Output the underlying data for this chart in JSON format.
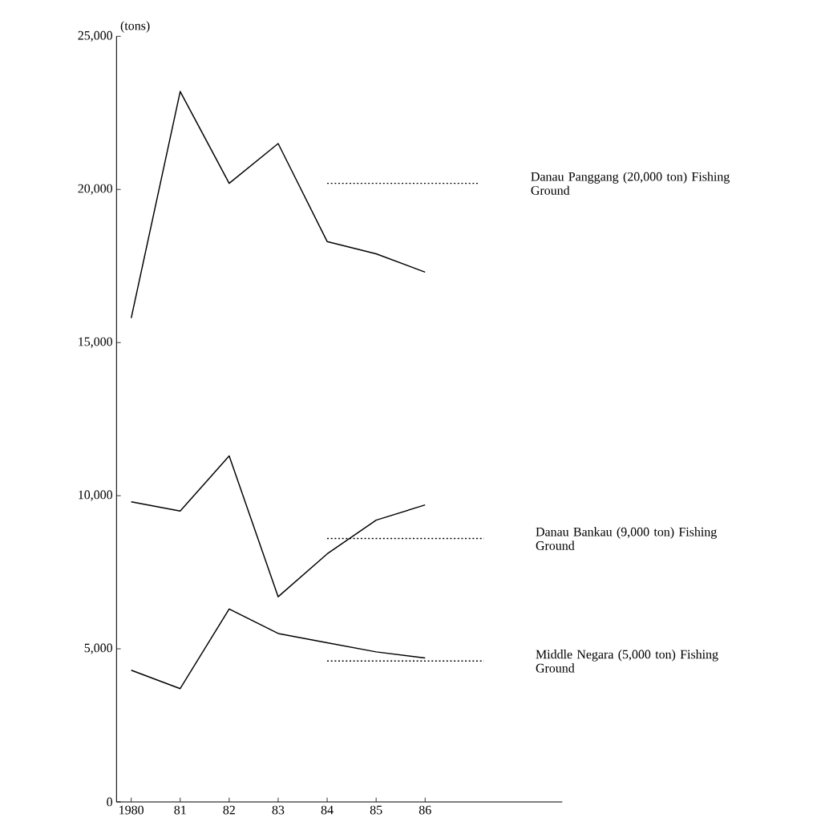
{
  "chart_data": {
    "type": "line",
    "ylabel": "(tons)",
    "xlim": [
      1979.7,
      1988.8
    ],
    "ylim": [
      0,
      25000
    ],
    "xticks": [
      1980,
      {
        "value": 1981,
        "label": "81"
      },
      {
        "value": 1982,
        "label": "82"
      },
      {
        "value": 1983,
        "label": "83"
      },
      {
        "value": 1984,
        "label": "84"
      },
      {
        "value": 1985,
        "label": "85"
      },
      {
        "value": 1986,
        "label": "86"
      }
    ],
    "yticks": [
      0,
      {
        "value": 5000,
        "label": "5,000"
      },
      {
        "value": 10000,
        "label": "10,000"
      },
      {
        "value": 15000,
        "label": "15,000"
      },
      {
        "value": 20000,
        "label": "20,000"
      },
      {
        "value": 25000,
        "label": "25,000"
      }
    ],
    "x": [
      1980,
      1981,
      1982,
      1983,
      1984,
      1985,
      1986
    ],
    "marker": "none",
    "grid": false,
    "legend": false,
    "series": [
      {
        "color": "#000000",
        "line_style": "solid",
        "values": [
          15800,
          23200,
          20200,
          21500,
          18300,
          17900,
          17300
        ]
      },
      {
        "name": "Danau Panggang (20,000 ton) Fishing Ground",
        "color": "#000000",
        "line_style": "dotted",
        "x": [
          1984,
          1987.1
        ],
        "values": [
          20200,
          20200
        ]
      },
      {
        "color": "#000000",
        "line_style": "solid",
        "values": [
          9800,
          9500,
          11300,
          6700,
          8100,
          9200,
          9700
        ]
      },
      {
        "name": "Danau Bankau (9,000 ton) Fishing Ground",
        "color": "#000000",
        "line_style": "dotted",
        "x": [
          1984,
          1987.2
        ],
        "values": [
          8600,
          8600
        ]
      },
      {
        "color": "#000000",
        "line_style": "solid",
        "values": [
          4300,
          3700,
          6300,
          5500,
          5200,
          4900,
          4700
        ]
      },
      {
        "name": "Middle Negara (5,000 ton) Fishing Ground",
        "color": "#000000",
        "line_style": "dotted",
        "x": [
          1984,
          1987.2
        ],
        "values": [
          4600,
          4600
        ]
      }
    ]
  }
}
